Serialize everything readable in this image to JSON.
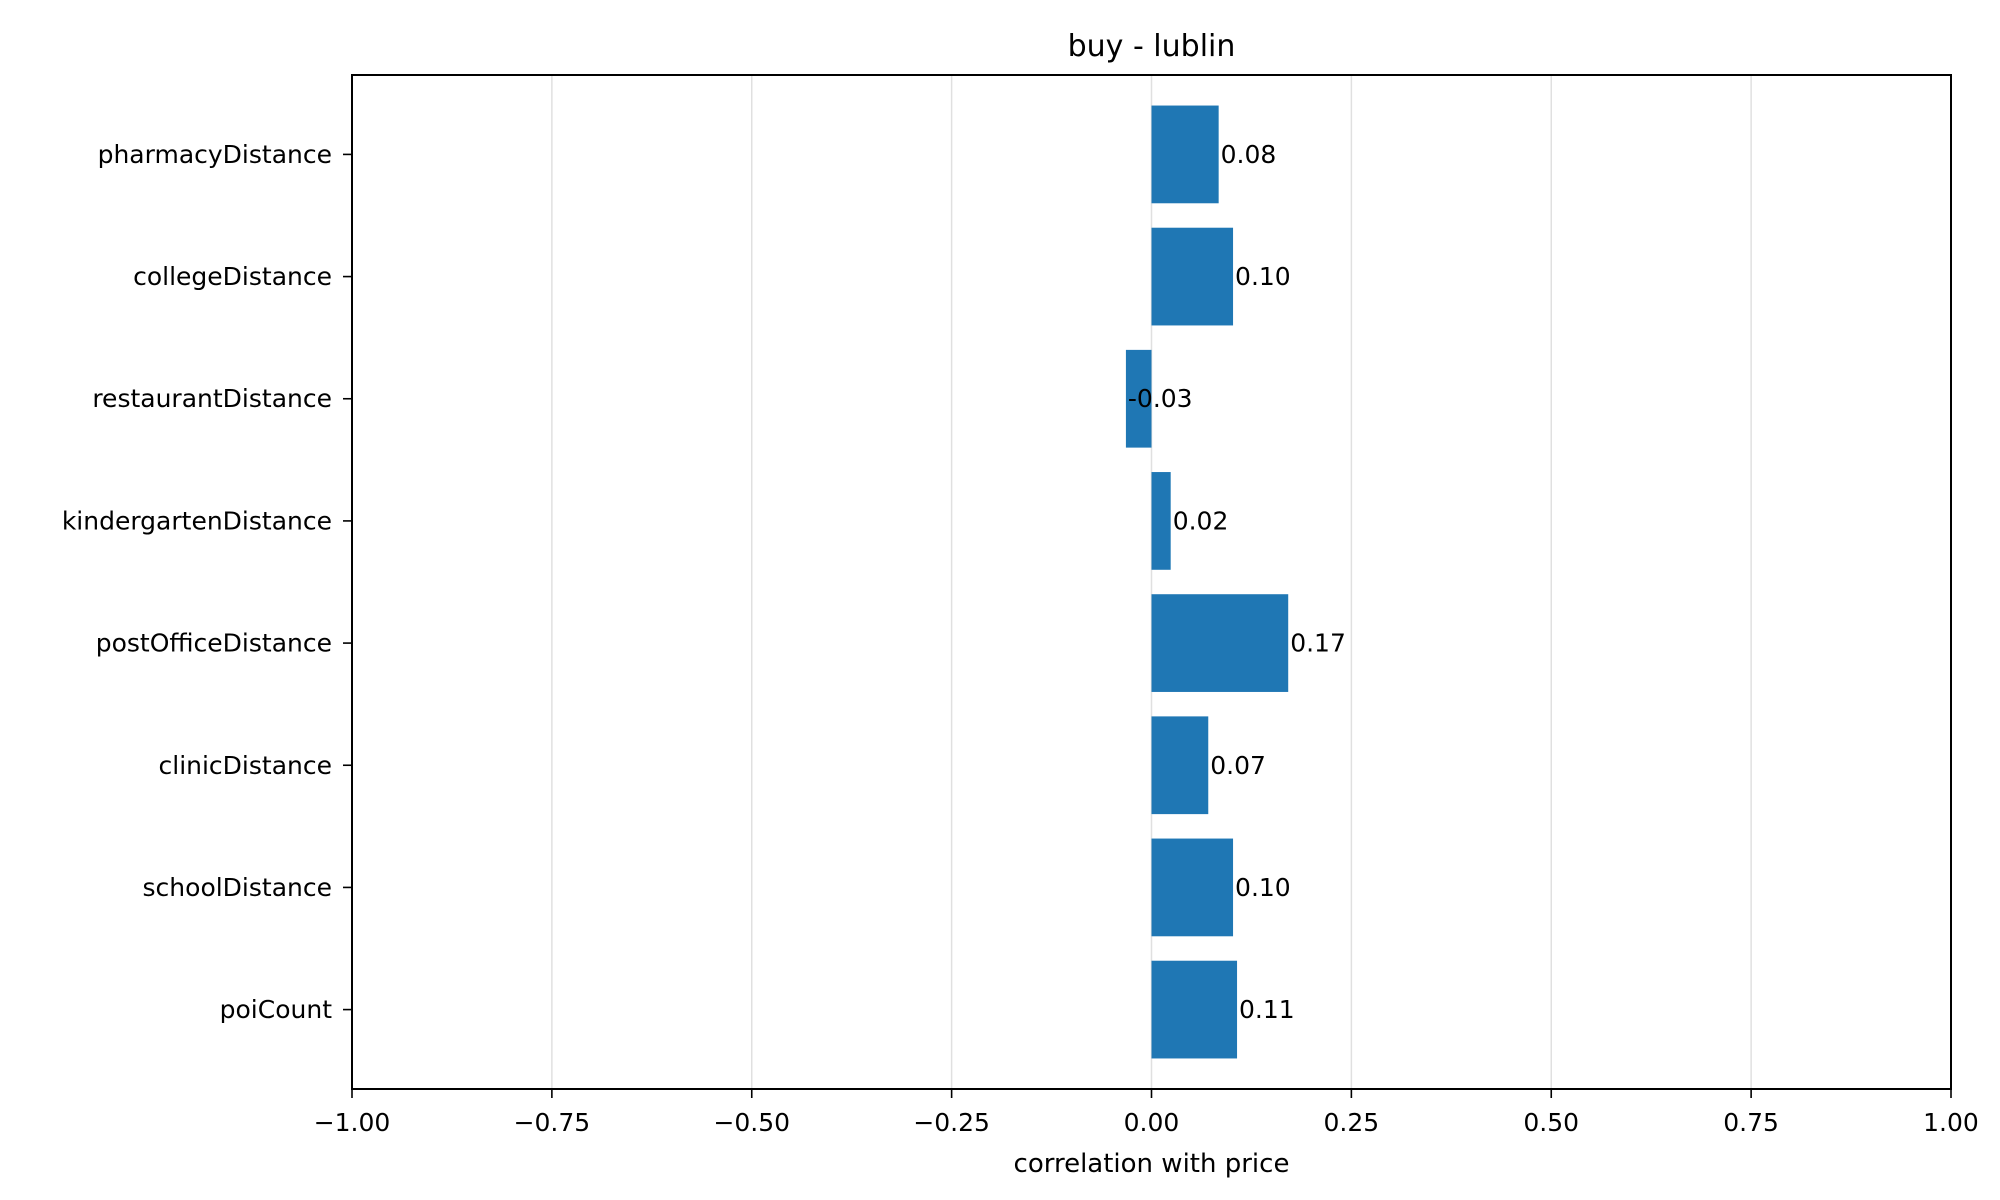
{
  "chart_data": {
    "type": "bar",
    "orientation": "horizontal",
    "title": "buy - lublin",
    "xlabel": "correlation with price",
    "ylabel": "",
    "xlim": [
      -1.0,
      1.0
    ],
    "xticks": [
      -1.0,
      -0.75,
      -0.5,
      -0.25,
      0.0,
      0.25,
      0.5,
      0.75,
      1.0
    ],
    "xtick_labels": [
      "−1.00",
      "−0.75",
      "−0.50",
      "−0.25",
      "0.00",
      "0.25",
      "0.50",
      "0.75",
      "1.00"
    ],
    "grid": "vertical",
    "categories": [
      "pharmacyDistance",
      "collegeDistance",
      "restaurantDistance",
      "kindergartenDistance",
      "postOfficeDistance",
      "clinicDistance",
      "schoolDistance",
      "poiCount"
    ],
    "values": [
      0.084,
      0.102,
      -0.032,
      0.024,
      0.171,
      0.071,
      0.102,
      0.107
    ],
    "value_labels": [
      "0.08",
      "0.10",
      "-0.03",
      "0.02",
      "0.17",
      "0.07",
      "0.10",
      "0.11"
    ],
    "colors": {
      "bar": "#1f77b4",
      "grid": "#e0e0e0",
      "axis": "#000000"
    }
  }
}
